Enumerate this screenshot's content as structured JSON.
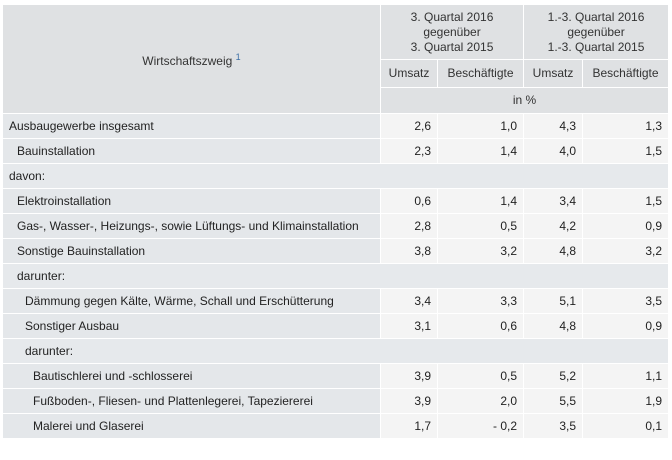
{
  "table": {
    "branch_header": "Wirtschaftszweig",
    "branch_footnote": "1",
    "periods": [
      {
        "line1": "3. Quartal 2016",
        "line2": "gegenüber",
        "line3": "3. Quartal 2015"
      },
      {
        "line1": "1.-3. Quartal 2016",
        "line2": "gegenüber",
        "line3": "1.-3. Quartal 2015"
      }
    ],
    "subheaders": [
      "Umsatz",
      "Beschäftigte",
      "Umsatz",
      "Beschäftigte"
    ],
    "unit": "in %",
    "rows": [
      {
        "label": "Ausbaugewerbe insgesamt",
        "indent": 0,
        "values": [
          "2,6",
          "1,0",
          "4,3",
          "1,3"
        ]
      },
      {
        "label": "Bauinstallation",
        "indent": 1,
        "values": [
          "2,3",
          "1,4",
          "4,0",
          "1,5"
        ]
      },
      {
        "label": "davon:",
        "indent": 0,
        "values": []
      },
      {
        "label": "Elektroinstallation",
        "indent": 1,
        "values": [
          "0,6",
          "1,4",
          "3,4",
          "1,5"
        ]
      },
      {
        "label": "Gas-, Wasser-, Heizungs-, sowie Lüftungs- und Klimainstallation",
        "indent": 1,
        "values": [
          "2,8",
          "0,5",
          "4,2",
          "0,9"
        ]
      },
      {
        "label": "Sonstige Bauinstallation",
        "indent": 1,
        "values": [
          "3,8",
          "3,2",
          "4,8",
          "3,2"
        ]
      },
      {
        "label": "darunter:",
        "indent": 1,
        "values": []
      },
      {
        "label": "Dämmung gegen Kälte, Wärme, Schall und Erschütterung",
        "indent": 2,
        "values": [
          "3,4",
          "3,3",
          "5,1",
          "3,5"
        ]
      },
      {
        "label": "Sonstiger Ausbau",
        "indent": 2,
        "values": [
          "3,1",
          "0,6",
          "4,8",
          "0,9"
        ]
      },
      {
        "label": "darunter:",
        "indent": 2,
        "values": []
      },
      {
        "label": "Bautischlerei und -schlosserei",
        "indent": 3,
        "values": [
          "3,9",
          "0,5",
          "5,2",
          "1,1"
        ]
      },
      {
        "label": "Fußboden-, Fliesen- und Plattenlegerei, Tapeziererei",
        "indent": 3,
        "values": [
          "3,9",
          "2,0",
          "5,5",
          "1,9"
        ]
      },
      {
        "label": "Malerei und Glaserei",
        "indent": 3,
        "values": [
          "1,7",
          "- 0,2",
          "3,5",
          "0,1"
        ]
      }
    ]
  }
}
